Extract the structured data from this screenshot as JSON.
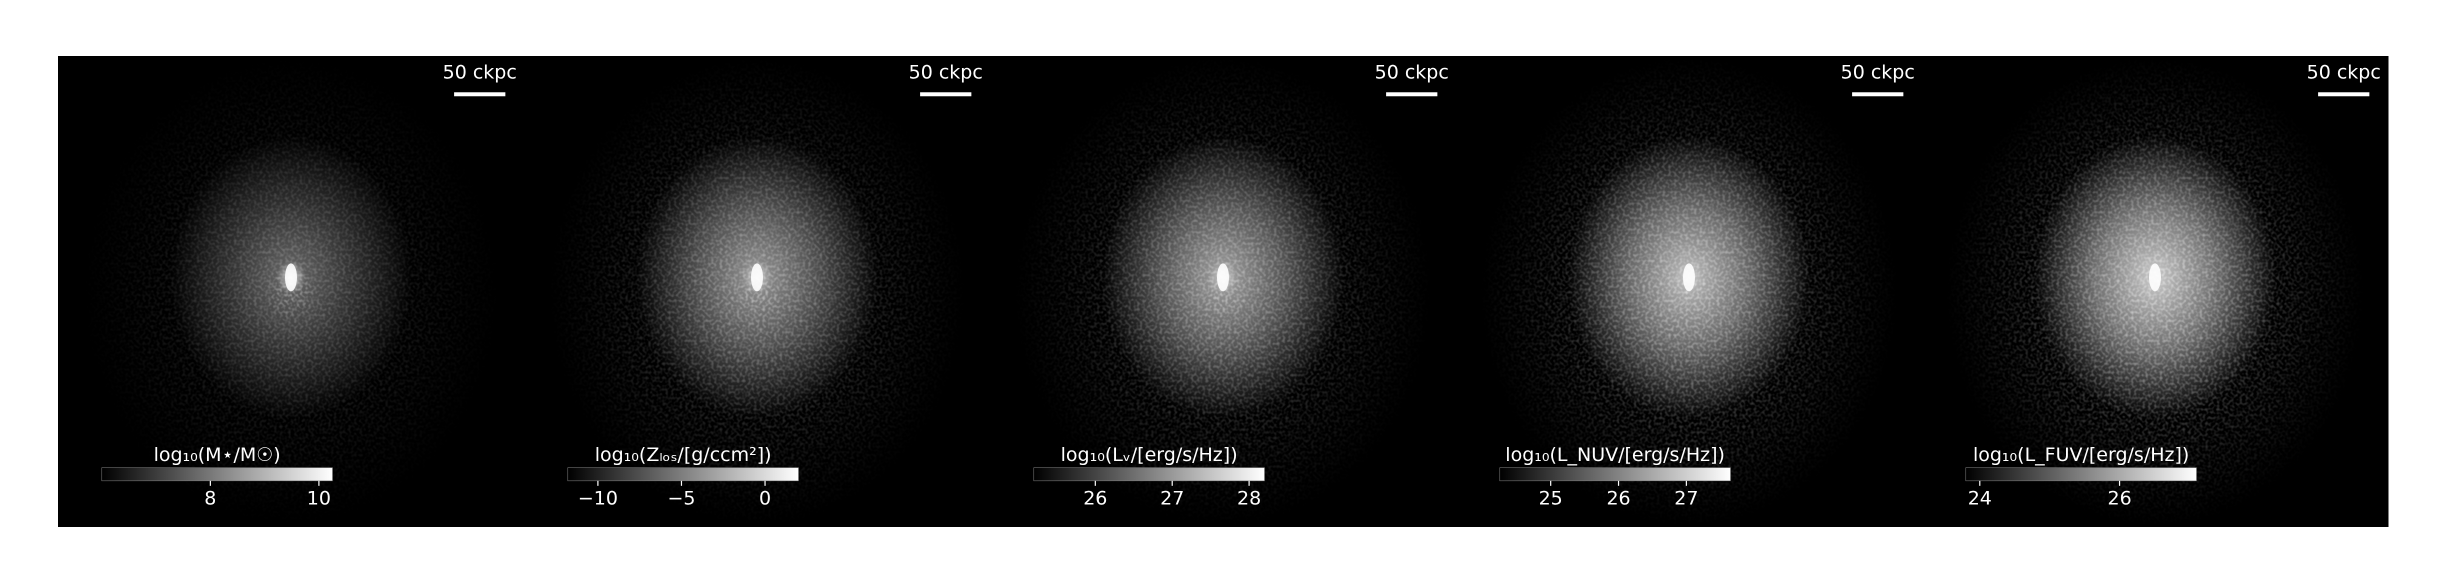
{
  "chart_data": [
    {
      "type": "image",
      "scale_bar": "50 ckpc",
      "colorbar": {
        "label": "log₁₀(M⋆/M☉)",
        "clim": [
          6,
          10.25
        ],
        "ticks": [
          8,
          10
        ]
      }
    },
    {
      "type": "image",
      "scale_bar": "50 ckpc",
      "colorbar": {
        "label": "log₁₀(Zₗₒₛ/[g/ccm²])",
        "clim": [
          -11.8,
          2
        ],
        "ticks": [
          {
            "value": -10,
            "label": "−10"
          },
          {
            "value": -5,
            "label": "−5"
          },
          0
        ]
      }
    },
    {
      "type": "image",
      "scale_bar": "50 ckpc",
      "colorbar": {
        "label": "log₁₀(Lᵥ/[erg/s/Hz])",
        "clim": [
          25.2,
          28.2
        ],
        "ticks": [
          26,
          27,
          28
        ]
      }
    },
    {
      "type": "image",
      "scale_bar": "50 ckpc",
      "colorbar": {
        "label": "log₁₀(L_NUV/[erg/s/Hz])",
        "clim": [
          24.25,
          27.65
        ],
        "ticks": [
          25,
          26,
          27
        ]
      }
    },
    {
      "type": "image",
      "scale_bar": "50 ckpc",
      "colorbar": {
        "label": "log₁₀(L_FUV/[erg/s/Hz])",
        "clim": [
          23.8,
          27.1
        ],
        "ticks": [
          24,
          26
        ]
      }
    }
  ]
}
